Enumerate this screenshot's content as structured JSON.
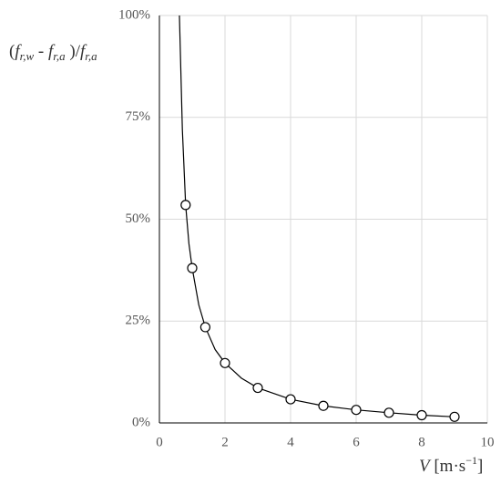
{
  "chart_data": {
    "type": "scatter",
    "ylabel": [
      "(",
      "f",
      "r,w",
      " - ",
      "f",
      "r,a",
      " )/",
      "f",
      "r,a"
    ],
    "xlabel": [
      "V",
      " [m·s",
      "−1",
      "]"
    ],
    "xlim": [
      0,
      10
    ],
    "xticks": [
      0,
      2,
      4,
      6,
      8,
      10
    ],
    "ylim": [
      0,
      100
    ],
    "yticks": [
      {
        "value": 0,
        "label": "0%"
      },
      {
        "value": 25,
        "label": "25%"
      },
      {
        "value": 50,
        "label": "50%"
      },
      {
        "value": 75,
        "label": "75%"
      },
      {
        "value": 100,
        "label": "100%"
      }
    ],
    "grid": true,
    "series": [
      {
        "color": "#000000",
        "style": "line",
        "x": [
          0.61,
          0.7,
          0.8,
          0.9,
          1,
          1.2,
          1.4,
          1.7,
          2,
          2.5,
          3,
          4,
          5,
          6,
          7,
          8,
          9
        ],
        "values": [
          100,
          72,
          53.5,
          44,
          38,
          29,
          23.5,
          18,
          14.7,
          11,
          8.6,
          5.8,
          4.2,
          3.2,
          2.5,
          1.9,
          1.5
        ]
      },
      {
        "color": "#000000",
        "style": "markers",
        "x": [
          0.8,
          1,
          1.4,
          2,
          3,
          4,
          5,
          6,
          7,
          8,
          9
        ],
        "values": [
          53.5,
          38,
          23.5,
          14.7,
          8.6,
          5.8,
          4.2,
          3.2,
          2.5,
          1.9,
          1.5
        ]
      }
    ]
  }
}
